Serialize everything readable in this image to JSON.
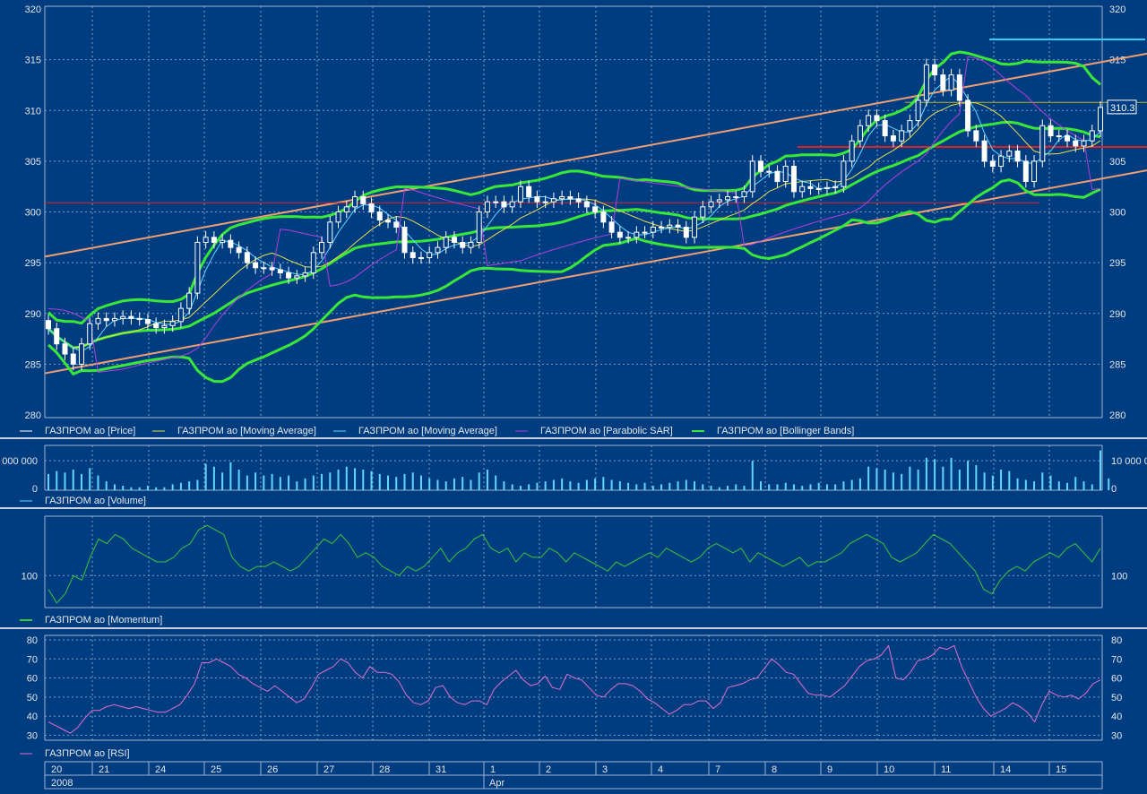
{
  "colors": {
    "background": "#003c80",
    "grid": "#7f9cc4",
    "frame": "#9fb4d4",
    "separator": "#c8d2e0",
    "price_up": "#ffffff",
    "price_down": "#ffffff",
    "ma_slow": "#e6e04a",
    "ma_fast": "#5fd7ff",
    "psar": "#b040e0",
    "bollinger": "#38e838",
    "channel": "#f0a070",
    "hline_red": "#e02020",
    "hline_cyan": "#30d0f0",
    "hline_olive": "#c0b020",
    "volume": "#5fd7ff",
    "momentum": "#38c838",
    "rsi": "#e070d0"
  },
  "legends": {
    "price": [
      {
        "label": "ГАЗПРОМ ао [Price]",
        "color": "#ffffff"
      },
      {
        "label": "ГАЗПРОМ ао [Moving Average]",
        "color": "#e6e04a"
      },
      {
        "label": "ГАЗПРОМ ао [Moving Average]",
        "color": "#5fd7ff"
      },
      {
        "label": "ГАЗПРОМ ао [Parabolic SAR]",
        "color": "#b040e0"
      },
      {
        "label": "ГАЗПРОМ ао [Bollinger Bands]",
        "color": "#38e838"
      }
    ],
    "volume": [
      {
        "label": "ГАЗПРОМ ао [Volume]",
        "color": "#5fd7ff"
      }
    ],
    "momentum": [
      {
        "label": "ГАЗПРОМ ао [Momentum]",
        "color": "#38c838"
      }
    ],
    "rsi": [
      {
        "label": "ГАЗПРОМ ао [RSI]",
        "color": "#e070d0"
      }
    ]
  },
  "last_price_label": "310.3",
  "volume_axis": {
    "left_top": "000 000",
    "left_zero": "0",
    "right_top": "10 000 0",
    "right_zero": "0"
  },
  "momentum_axis": {
    "left": "100",
    "right": "100"
  },
  "x_axis": {
    "days": [
      "20",
      "21",
      "24",
      "25",
      "26",
      "27",
      "28",
      "31",
      "1",
      "2",
      "3",
      "4",
      "7",
      "8",
      "9",
      "10",
      "11",
      "14",
      "15"
    ],
    "periods": [
      "2008",
      "Apr"
    ]
  },
  "chart_data": [
    {
      "type": "candlestick",
      "title": "",
      "ylim": [
        280,
        320
      ],
      "y_ticks": [
        280,
        285,
        290,
        295,
        300,
        305,
        310,
        315,
        320
      ],
      "grid": true,
      "ohlc_close": [
        288.5,
        287,
        286,
        285,
        287,
        289,
        289.5,
        289.3,
        289.5,
        289.7,
        289.5,
        289.4,
        289,
        288.6,
        288.8,
        289.2,
        290.5,
        292,
        297,
        297.5,
        297,
        297.2,
        296.5,
        296,
        295,
        294.5,
        294.5,
        294.3,
        294,
        293.5,
        293.7,
        294,
        296,
        297,
        299,
        300,
        300.5,
        301.5,
        300.8,
        300,
        299.2,
        299,
        298.5,
        296,
        295.5,
        295.5,
        296,
        296.5,
        297.5,
        297,
        296.5,
        297,
        300,
        301,
        301,
        300.5,
        301,
        302.5,
        301.5,
        301,
        301,
        301.3,
        301.5,
        301.3,
        301,
        300.5,
        300,
        299,
        298,
        297.5,
        297.5,
        298,
        298,
        298.5,
        298.5,
        298.7,
        298.5,
        297.5,
        299.5,
        300.5,
        301,
        301.2,
        301.5,
        301.5,
        302,
        305,
        304,
        304,
        303,
        304.5,
        302,
        302.5,
        302.3,
        302.3,
        302.4,
        302.5,
        305,
        307,
        308.5,
        309.5,
        309,
        307.5,
        307,
        308,
        309,
        311,
        314.5,
        313.5,
        312,
        313.5,
        311,
        308,
        307,
        305,
        304.5,
        305.5,
        306,
        305,
        303,
        305,
        308.5,
        307.5,
        307.5,
        307,
        306.5,
        307,
        308,
        310.3
      ],
      "channel_upper": [
        [
          0,
          295.6
        ],
        [
          1230,
          315.6
        ]
      ],
      "channel_lower": [
        [
          0,
          284.1
        ],
        [
          1230,
          304.1
        ]
      ],
      "h_levels": [
        {
          "price": 300.9,
          "from": 0,
          "to": 1110,
          "color": "red-thin"
        },
        {
          "price": 306.4,
          "from": 840,
          "to": 1230,
          "color": "red"
        },
        {
          "price": 317.0,
          "from": 1054,
          "to": 1228,
          "color": "cyan"
        },
        {
          "price": 310.8,
          "from": 960,
          "to": 1230,
          "color": "olive"
        }
      ]
    },
    {
      "type": "bar",
      "title": "",
      "series": [
        {
          "values": [
            0.55,
            0.65,
            0.6,
            0.7,
            0.55,
            0.75,
            0.5,
            0.3,
            0.2,
            0.15,
            0.1,
            0.1,
            0.15,
            0.1,
            0.1,
            0.2,
            0.25,
            0.3,
            0.35,
            0.9,
            0.8,
            0.6,
            0.95,
            0.7,
            0.5,
            0.6,
            0.5,
            0.55,
            0.45,
            0.5,
            0.3,
            0.4,
            0.5,
            0.55,
            0.6,
            0.7,
            0.8,
            0.75,
            0.7,
            0.65,
            0.55,
            0.5,
            0.45,
            0.55,
            0.6,
            0.5,
            0.4,
            0.35,
            0.3,
            0.4,
            0.45,
            0.35,
            0.6,
            0.7,
            0.5,
            0.3,
            0.2,
            0.15,
            0.2,
            0.25,
            0.3,
            0.35,
            0.4,
            0.3,
            0.25,
            0.35,
            0.4,
            0.45,
            0.35,
            0.3,
            0.25,
            0.2,
            0.25,
            0.15,
            0.2,
            0.25,
            0.3,
            0.35,
            0.3,
            0.2,
            0.15,
            0.1,
            0.15,
            0.2,
            0.15,
            1.0,
            0.3,
            0.2,
            0.2,
            0.25,
            0.2,
            0.15,
            0.2,
            0.25,
            0.2,
            0.2,
            0.3,
            0.35,
            0.4,
            0.8,
            0.75,
            0.7,
            0.6,
            0.55,
            0.8,
            0.7,
            1.1,
            1.05,
            0.8,
            1.1,
            0.7,
            1.0,
            0.85,
            0.6,
            0.5,
            0.7,
            0.65,
            0.4,
            0.35,
            0.3,
            0.6,
            0.5,
            0.3,
            0.25,
            0.45,
            0.3,
            0.2,
            1.35,
            0.4
          ]
        }
      ]
    },
    {
      "type": "line",
      "title": "",
      "series": [
        {
          "values": [
            97,
            94,
            96,
            100,
            99,
            104,
            108,
            107,
            109,
            108,
            106,
            105,
            104,
            103,
            103,
            104,
            106,
            107,
            110,
            111,
            110,
            109,
            104,
            102,
            101,
            102,
            102,
            103,
            102,
            101,
            102,
            104,
            106,
            108,
            107,
            109,
            107,
            104,
            105,
            104,
            102,
            101,
            100,
            102,
            101,
            102,
            104,
            106,
            103,
            105,
            106,
            108,
            109,
            106,
            105,
            106,
            103,
            105,
            104,
            104,
            106,
            105,
            103,
            105,
            104,
            103,
            102,
            101,
            103,
            102,
            103,
            104,
            105,
            104,
            106,
            105,
            104,
            103,
            104,
            106,
            107,
            106,
            105,
            106,
            103,
            105,
            104,
            103,
            102,
            103,
            104,
            102,
            103,
            103,
            104,
            105,
            107,
            108,
            109,
            108,
            107,
            104,
            103,
            104,
            105,
            107,
            109,
            108,
            107,
            105,
            103,
            101,
            97,
            96,
            99,
            101,
            102,
            101,
            103,
            104,
            105,
            104,
            106,
            107,
            105,
            103,
            106
          ]
        }
      ],
      "reference_line": 100
    },
    {
      "type": "line",
      "title": "",
      "ylim": [
        25,
        80
      ],
      "y_ticks": [
        30,
        40,
        50,
        60,
        70,
        80
      ],
      "series": [
        {
          "values": [
            37,
            35,
            33,
            31,
            34,
            39,
            43,
            43,
            45,
            46,
            45,
            44,
            45,
            44,
            43,
            42,
            42,
            44,
            46,
            51,
            57,
            68,
            68,
            70,
            68,
            66,
            62,
            60,
            57,
            55,
            53,
            56,
            53,
            50,
            47,
            49,
            55,
            62,
            64,
            66,
            70,
            68,
            63,
            60,
            66,
            63,
            63,
            62,
            58,
            51,
            47,
            46,
            48,
            55,
            56,
            50,
            47,
            46,
            48,
            48,
            46,
            54,
            58,
            61,
            64,
            59,
            56,
            57,
            61,
            55,
            54,
            62,
            60,
            59,
            55,
            51,
            50,
            54,
            57,
            57,
            56,
            53,
            49,
            47,
            44,
            41,
            43,
            46,
            46,
            48,
            48,
            44,
            47,
            55,
            56,
            57,
            59,
            60,
            65,
            70,
            67,
            63,
            62,
            57,
            52,
            51,
            51,
            50,
            53,
            56,
            61,
            66,
            69,
            70,
            72,
            77,
            60,
            59,
            63,
            69,
            70,
            72,
            76,
            75,
            77,
            66,
            58,
            50,
            44,
            40,
            42,
            44,
            47,
            45,
            42,
            37,
            46,
            53,
            51,
            50,
            51,
            49,
            52,
            57,
            59
          ]
        }
      ]
    }
  ]
}
